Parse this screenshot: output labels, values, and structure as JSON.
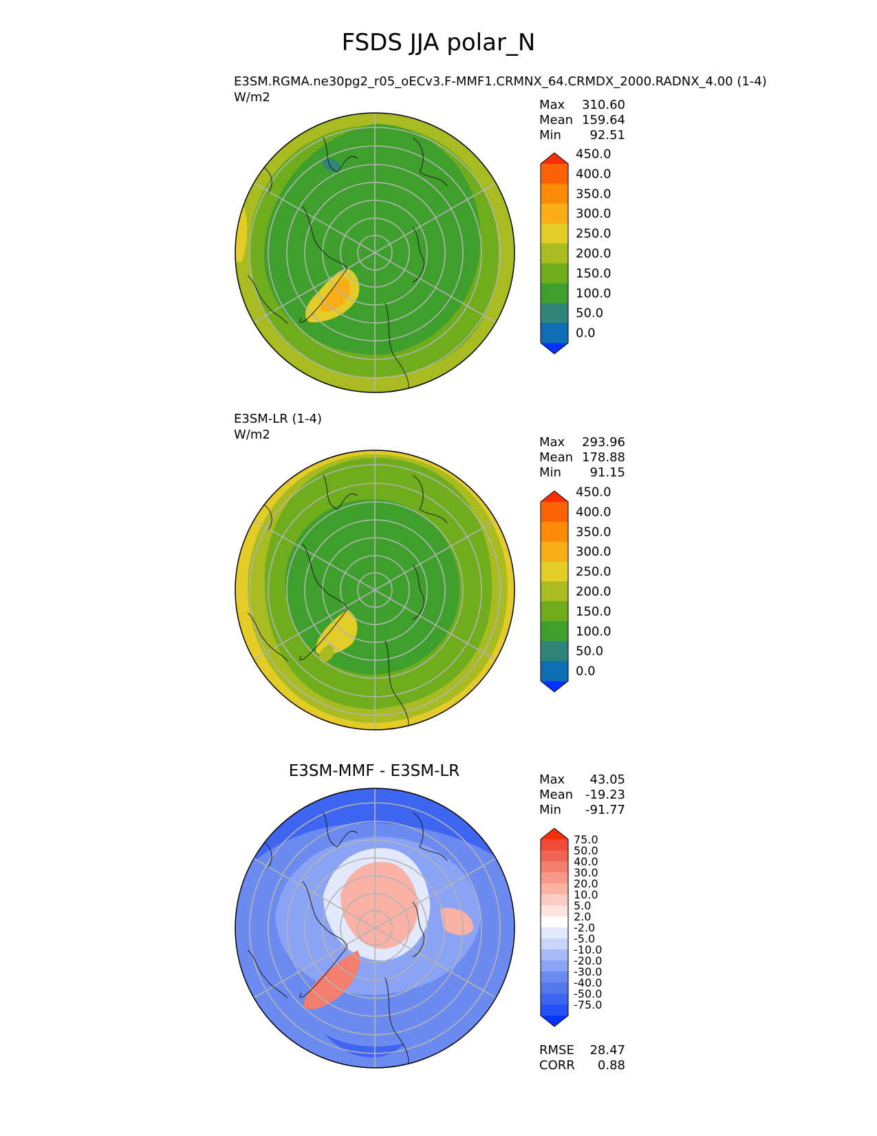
{
  "page_title": "FSDS JJA polar_N",
  "panels": [
    {
      "title": "E3SM.RGMA.ne30pg2_r05_oECv3.F-MMF1.CRMNX_64.CRMDX_2000.RADNX_4.00 (1-4)",
      "units": "W/m2",
      "stats": [
        {
          "label": "Max",
          "value": "310.60"
        },
        {
          "label": "Mean",
          "value": "159.64"
        },
        {
          "label": "Min",
          "value": "92.51"
        }
      ]
    },
    {
      "title": "E3SM-LR (1-4)",
      "units": "W/m2",
      "stats": [
        {
          "label": "Max",
          "value": "293.96"
        },
        {
          "label": "Mean",
          "value": "178.88"
        },
        {
          "label": "Min",
          "value": "91.15"
        }
      ]
    },
    {
      "title": "E3SM-MMF - E3SM-LR",
      "stats": [
        {
          "label": "Max",
          "value": "43.05"
        },
        {
          "label": "Mean",
          "value": "-19.23"
        },
        {
          "label": "Min",
          "value": "-91.77"
        }
      ],
      "metrics": [
        {
          "label": "RMSE",
          "value": "28.47"
        },
        {
          "label": "CORR",
          "value": "0.88"
        }
      ]
    }
  ],
  "chart_data": [
    {
      "type": "heatmap",
      "projection": "north polar stereographic",
      "title": "E3SM.RGMA.ne30pg2_r05_oECv3.F-MMF1.CRMNX_64.CRMDX_2000.RADNX_4.00 (1-4)",
      "units": "W/m2",
      "max": 310.6,
      "mean": 159.64,
      "min": 92.51,
      "colorbar": {
        "ticks": [
          "0.0",
          "50.0",
          "100.0",
          "150.0",
          "200.0",
          "250.0",
          "300.0",
          "350.0",
          "400.0",
          "450.0"
        ],
        "colors": [
          "#0433ff",
          "#0d6eb4",
          "#2f8577",
          "#3f9f2d",
          "#6fad1c",
          "#a8bb20",
          "#e3cb28",
          "#f9ad16",
          "#fb8a07",
          "#fb6306",
          "#f92e06"
        ],
        "extend": "both"
      }
    },
    {
      "type": "heatmap",
      "projection": "north polar stereographic",
      "title": "E3SM-LR (1-4)",
      "units": "W/m2",
      "max": 293.96,
      "mean": 178.88,
      "min": 91.15,
      "colorbar": {
        "ticks": [
          "0.0",
          "50.0",
          "100.0",
          "150.0",
          "200.0",
          "250.0",
          "300.0",
          "350.0",
          "400.0",
          "450.0"
        ],
        "colors": [
          "#0433ff",
          "#0d6eb4",
          "#2f8577",
          "#3f9f2d",
          "#6fad1c",
          "#a8bb20",
          "#e3cb28",
          "#f9ad16",
          "#fb8a07",
          "#fb6306",
          "#f92e06"
        ],
        "extend": "both"
      }
    },
    {
      "type": "heatmap",
      "projection": "north polar stereographic",
      "title": "E3SM-MMF - E3SM-LR",
      "max": 43.05,
      "mean": -19.23,
      "min": -91.77,
      "rmse": 28.47,
      "corr": 0.88,
      "colorbar": {
        "ticks": [
          "-75.0",
          "-50.0",
          "-40.0",
          "-30.0",
          "-20.0",
          "-10.0",
          "-5.0",
          "-2.0",
          "2.0",
          "5.0",
          "10.0",
          "20.0",
          "30.0",
          "40.0",
          "50.0",
          "75.0"
        ],
        "colors": [
          "#0433ff",
          "#2550f5",
          "#3e66f0",
          "#5479ec",
          "#6c8bf0",
          "#8aa3f4",
          "#a7bbf8",
          "#c8d5fb",
          "#e3e9fd",
          "#ffffff",
          "#fde4e0",
          "#fccbc3",
          "#fab1a6",
          "#f79889",
          "#f47e6d",
          "#f26453",
          "#f04a38",
          "#f92e06"
        ],
        "extend": "both"
      }
    }
  ]
}
